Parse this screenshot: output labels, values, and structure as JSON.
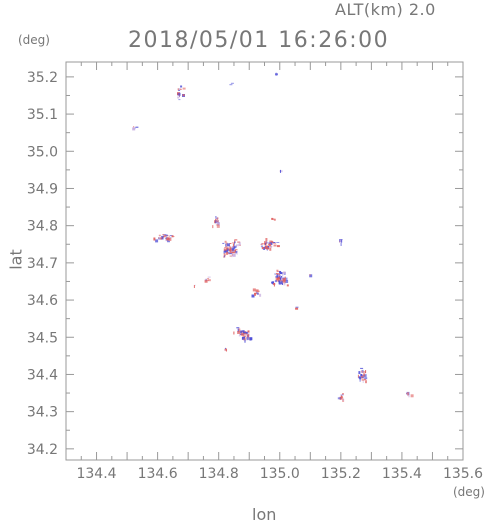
{
  "header": {
    "altitude": "ALT(km)  2.0",
    "timestamp": "2018/05/01  16:26:00"
  },
  "axes": {
    "y_unit": "(deg)",
    "x_unit": "(deg)",
    "y_label": "lat",
    "x_label": "lon"
  },
  "chart_data": {
    "type": "scatter",
    "x_ticks": [
      "134.4",
      "134.6",
      "134.8",
      "135.0",
      "135.2",
      "135.4",
      "135.6"
    ],
    "y_ticks": [
      "35.2",
      "35.1",
      "35.0",
      "34.9",
      "34.8",
      "34.7",
      "34.6",
      "34.5",
      "34.4",
      "34.3",
      "34.2"
    ],
    "xlim": [
      134.3,
      135.6
    ],
    "ylim": [
      34.17,
      35.24
    ],
    "colors": {
      "positive": "#e06060",
      "negative": "#5050d8",
      "frame": "#999999"
    },
    "clusters": [
      {
        "lon": 134.52,
        "lat": 35.065,
        "n": 5,
        "spread": [
          0.01,
          0.004
        ]
      },
      {
        "lon": 134.67,
        "lat": 35.16,
        "n": 14,
        "spread": [
          0.02,
          0.03
        ]
      },
      {
        "lon": 134.84,
        "lat": 35.185,
        "n": 2,
        "spread": [
          0.01,
          0.005
        ]
      },
      {
        "lon": 134.985,
        "lat": 35.21,
        "n": 2,
        "spread": [
          0.004,
          0.003
        ]
      },
      {
        "lon": 135.0,
        "lat": 34.95,
        "n": 2,
        "spread": [
          0.003,
          0.003
        ]
      },
      {
        "lon": 134.62,
        "lat": 34.77,
        "n": 40,
        "spread": [
          0.045,
          0.015
        ]
      },
      {
        "lon": 134.79,
        "lat": 34.82,
        "n": 18,
        "spread": [
          0.015,
          0.025
        ]
      },
      {
        "lon": 134.84,
        "lat": 34.74,
        "n": 70,
        "spread": [
          0.04,
          0.03
        ]
      },
      {
        "lon": 134.96,
        "lat": 34.75,
        "n": 40,
        "spread": [
          0.04,
          0.02
        ]
      },
      {
        "lon": 134.975,
        "lat": 34.82,
        "n": 3,
        "spread": [
          0.01,
          0.003
        ]
      },
      {
        "lon": 135.0,
        "lat": 34.66,
        "n": 55,
        "spread": [
          0.035,
          0.035
        ]
      },
      {
        "lon": 134.92,
        "lat": 34.62,
        "n": 10,
        "spread": [
          0.02,
          0.015
        ]
      },
      {
        "lon": 134.76,
        "lat": 34.66,
        "n": 6,
        "spread": [
          0.015,
          0.01
        ]
      },
      {
        "lon": 134.72,
        "lat": 34.64,
        "n": 2,
        "spread": [
          0.005,
          0.005
        ]
      },
      {
        "lon": 134.88,
        "lat": 34.51,
        "n": 45,
        "spread": [
          0.04,
          0.025
        ]
      },
      {
        "lon": 134.82,
        "lat": 34.47,
        "n": 4,
        "spread": [
          0.008,
          0.004
        ]
      },
      {
        "lon": 135.05,
        "lat": 34.58,
        "n": 2,
        "spread": [
          0.005,
          0.005
        ]
      },
      {
        "lon": 135.1,
        "lat": 34.67,
        "n": 2,
        "spread": [
          0.006,
          0.004
        ]
      },
      {
        "lon": 135.2,
        "lat": 34.76,
        "n": 6,
        "spread": [
          0.01,
          0.01
        ]
      },
      {
        "lon": 135.27,
        "lat": 34.4,
        "n": 22,
        "spread": [
          0.02,
          0.025
        ]
      },
      {
        "lon": 135.2,
        "lat": 34.34,
        "n": 10,
        "spread": [
          0.015,
          0.01
        ]
      },
      {
        "lon": 135.42,
        "lat": 34.35,
        "n": 6,
        "spread": [
          0.015,
          0.008
        ]
      }
    ]
  }
}
